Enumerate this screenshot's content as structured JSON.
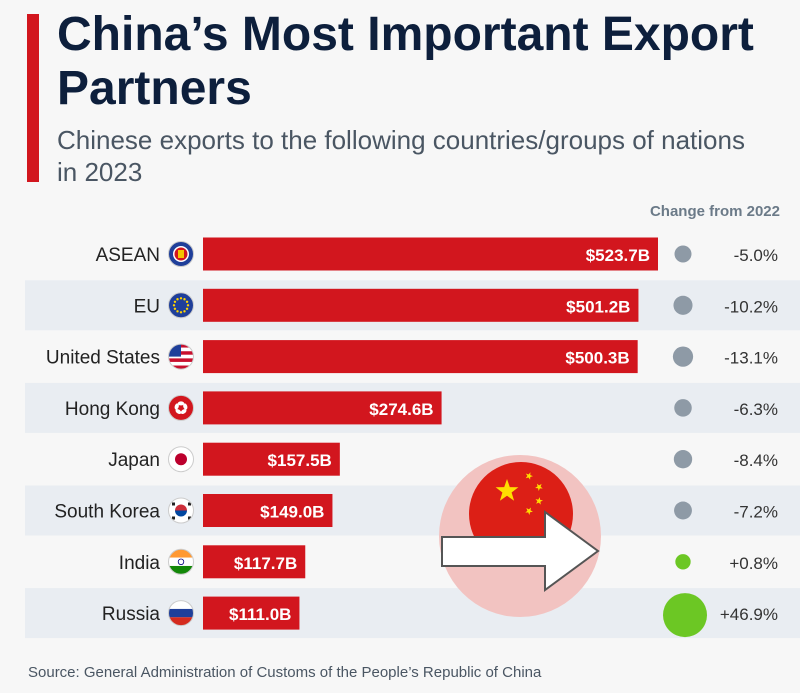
{
  "title": "China’s Most Important Export Partners",
  "subtitle": "Chinese exports to the following countries/groups of nations in 2023",
  "change_header": "Change from 2022",
  "source": "Source: General Administration of Customs of the People’s Republic of China",
  "colors": {
    "bar": "#d2161e",
    "title": "#0d1f3c",
    "neg_dot": "#8e9aa6",
    "pos_dot": "#6cc724",
    "row_stripe": "#e9edf2"
  },
  "chart_data": {
    "type": "bar",
    "orientation": "horizontal",
    "title": "China’s Most Important Export Partners",
    "subtitle": "Chinese exports to the following countries/groups of nations in 2023",
    "categories": [
      "ASEAN",
      "EU",
      "United States",
      "Hong Kong",
      "Japan",
      "South Korea",
      "India",
      "Russia"
    ],
    "values": [
      523.7,
      501.2,
      500.3,
      274.6,
      157.5,
      149.0,
      117.7,
      111.0
    ],
    "value_labels": [
      "$523.7B",
      "$501.2B",
      "$500.3B",
      "$274.6B",
      "$157.5B",
      "$149.0B",
      "$117.7B",
      "$111.0B"
    ],
    "change_from_2022": [
      -5.0,
      -10.2,
      -13.1,
      -6.3,
      -8.4,
      -7.2,
      0.8,
      46.9
    ],
    "change_labels": [
      "-5.0%",
      "-10.2%",
      "-13.1%",
      "-6.3%",
      "-8.4%",
      "-7.2%",
      "+0.8%",
      "+46.9%"
    ],
    "flag_icons": [
      "asean-emblem-icon",
      "eu-flag-icon",
      "us-flag-icon",
      "hong-kong-flag-icon",
      "japan-flag-icon",
      "south-korea-flag-icon",
      "india-flag-icon",
      "russia-flag-icon"
    ],
    "xlim": [
      0,
      523.7
    ],
    "grid": false,
    "legend": "none"
  }
}
